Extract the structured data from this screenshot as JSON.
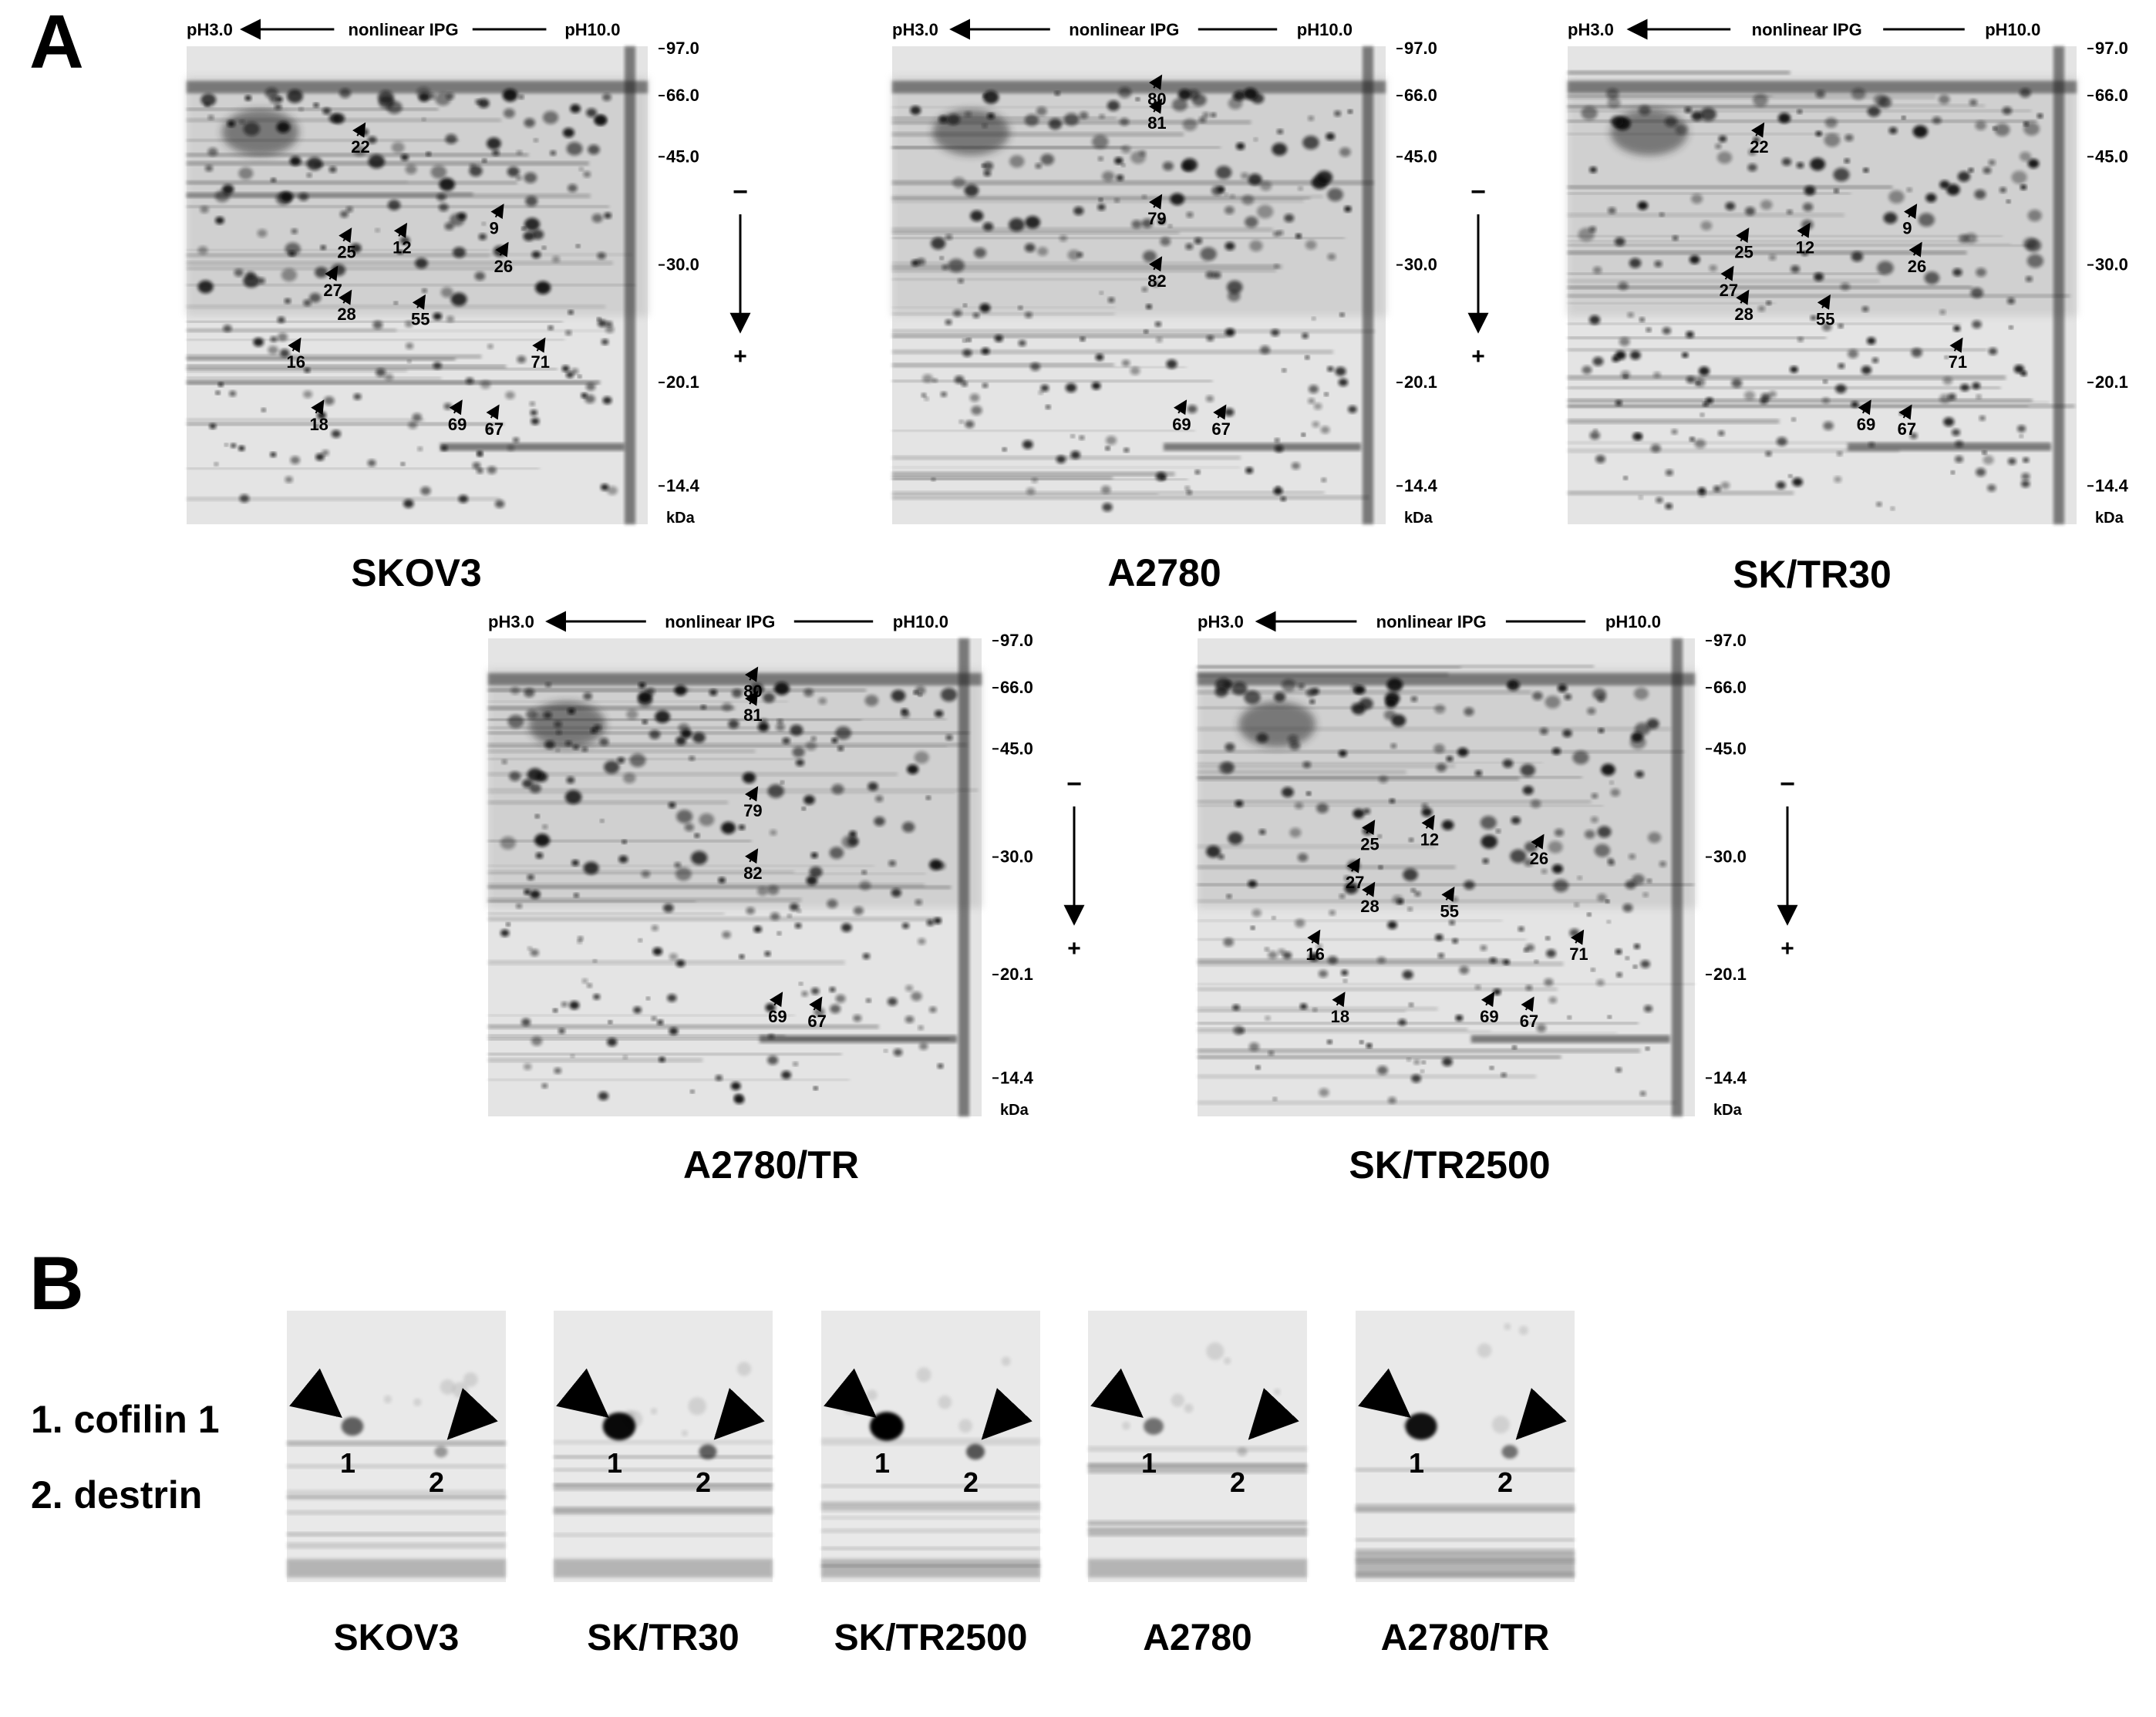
{
  "panels": {
    "A": {
      "letter": "A",
      "header": {
        "left": "pH3.0",
        "mid": "nonlinear IPG",
        "right": "pH10.0"
      },
      "mw_unit": "kDa",
      "mw_markers": [
        "97.0",
        "66.0",
        "45.0",
        "30.0",
        "20.1",
        "14.4"
      ],
      "polarity": {
        "minus": "−",
        "plus": "+"
      },
      "gels": [
        {
          "label": "SKOV3",
          "spots": [
            "22",
            "9",
            "25",
            "12",
            "26",
            "27",
            "28",
            "55",
            "16",
            "71",
            "18",
            "69",
            "67"
          ]
        },
        {
          "label": "A2780",
          "spots": [
            "80",
            "81",
            "79",
            "82",
            "69",
            "67"
          ]
        },
        {
          "label": "SK/TR30",
          "spots": [
            "22",
            "9",
            "25",
            "12",
            "26",
            "27",
            "28",
            "55",
            "71",
            "69",
            "67"
          ]
        },
        {
          "label": "A2780/TR",
          "spots": [
            "80",
            "81",
            "79",
            "82",
            "69",
            "67"
          ]
        },
        {
          "label": "SK/TR2500",
          "spots": [
            "25",
            "12",
            "26",
            "27",
            "28",
            "55",
            "16",
            "71",
            "18",
            "69",
            "67"
          ]
        }
      ]
    },
    "B": {
      "letter": "B",
      "legend": [
        "1. cofilin 1",
        "2. destrin"
      ],
      "blots": [
        {
          "label": "SKOV3",
          "spot1": "1",
          "spot2": "2",
          "cofilin_intensity": 0.45,
          "destrin_intensity": 0.25
        },
        {
          "label": "SK/TR30",
          "spot1": "1",
          "spot2": "2",
          "cofilin_intensity": 0.95,
          "destrin_intensity": 0.55
        },
        {
          "label": "SK/TR2500",
          "spot1": "1",
          "spot2": "2",
          "cofilin_intensity": 1.0,
          "destrin_intensity": 0.6
        },
        {
          "label": "A2780",
          "spot1": "1",
          "spot2": "2",
          "cofilin_intensity": 0.35,
          "destrin_intensity": 0.05
        },
        {
          "label": "A2780/TR",
          "spot1": "1",
          "spot2": "2",
          "cofilin_intensity": 0.9,
          "destrin_intensity": 0.45
        }
      ]
    }
  }
}
